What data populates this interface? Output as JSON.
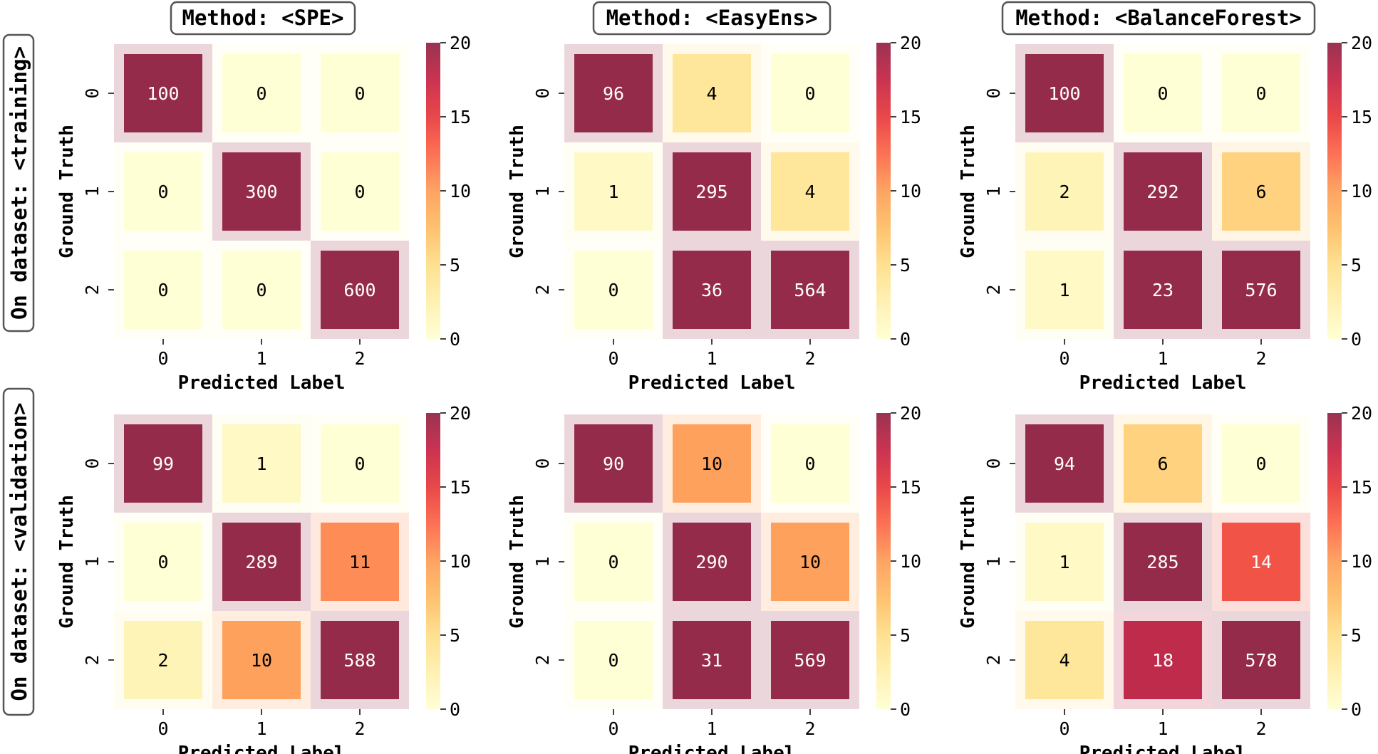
{
  "figure": {
    "row_labels": [
      "On dataset: <training>",
      "On dataset: <validation>"
    ],
    "col_titles": [
      "Method: <SPE>",
      "Method: <EasyEns>",
      "Method: <BalanceForest>"
    ]
  },
  "colors": {
    "cmap": [
      "#ffffcc",
      "#ffeda0",
      "#fed976",
      "#feb24c",
      "#fd8d3c",
      "#fc4e2a",
      "#e31a1c",
      "#bd0026",
      "#800026"
    ],
    "cell_alpha": 0.8,
    "title_box_stroke": "#555555",
    "text_dark": "#000000",
    "text_light": "#ffffff"
  },
  "chart_data": [
    {
      "type": "heatmap",
      "title": "Method: <SPE>",
      "row_group": "On dataset: <training>",
      "xlabel": "Predicted Label",
      "ylabel": "Ground Truth",
      "x_ticks": [
        "0",
        "1",
        "2"
      ],
      "y_ticks": [
        "0",
        "1",
        "2"
      ],
      "values": [
        [
          100,
          0,
          0
        ],
        [
          0,
          300,
          0
        ],
        [
          0,
          0,
          600
        ]
      ],
      "colorbar": {
        "range": [
          0,
          20
        ],
        "ticks": [
          "0",
          "5",
          "10",
          "15",
          "20"
        ]
      }
    },
    {
      "type": "heatmap",
      "title": "Method: <EasyEns>",
      "row_group": "On dataset: <training>",
      "xlabel": "Predicted Label",
      "ylabel": "Ground Truth",
      "x_ticks": [
        "0",
        "1",
        "2"
      ],
      "y_ticks": [
        "0",
        "1",
        "2"
      ],
      "values": [
        [
          96,
          4,
          0
        ],
        [
          1,
          295,
          4
        ],
        [
          0,
          36,
          564
        ]
      ],
      "colorbar": {
        "range": [
          0,
          20
        ],
        "ticks": [
          "0",
          "5",
          "10",
          "15",
          "20"
        ]
      }
    },
    {
      "type": "heatmap",
      "title": "Method: <BalanceForest>",
      "row_group": "On dataset: <training>",
      "xlabel": "Predicted Label",
      "ylabel": "Ground Truth",
      "x_ticks": [
        "0",
        "1",
        "2"
      ],
      "y_ticks": [
        "0",
        "1",
        "2"
      ],
      "values": [
        [
          100,
          0,
          0
        ],
        [
          2,
          292,
          6
        ],
        [
          1,
          23,
          576
        ]
      ],
      "colorbar": {
        "range": [
          0,
          20
        ],
        "ticks": [
          "0",
          "5",
          "10",
          "15",
          "20"
        ]
      }
    },
    {
      "type": "heatmap",
      "title": "",
      "row_group": "On dataset: <validation>",
      "xlabel": "Predicted Label",
      "ylabel": "Ground Truth",
      "x_ticks": [
        "0",
        "1",
        "2"
      ],
      "y_ticks": [
        "0",
        "1",
        "2"
      ],
      "values": [
        [
          99,
          1,
          0
        ],
        [
          0,
          289,
          11
        ],
        [
          2,
          10,
          588
        ]
      ],
      "colorbar": {
        "range": [
          0,
          20
        ],
        "ticks": [
          "0",
          "5",
          "10",
          "15",
          "20"
        ]
      }
    },
    {
      "type": "heatmap",
      "title": "",
      "row_group": "On dataset: <validation>",
      "xlabel": "Predicted Label",
      "ylabel": "Ground Truth",
      "x_ticks": [
        "0",
        "1",
        "2"
      ],
      "y_ticks": [
        "0",
        "1",
        "2"
      ],
      "values": [
        [
          90,
          10,
          0
        ],
        [
          0,
          290,
          10
        ],
        [
          0,
          31,
          569
        ]
      ],
      "colorbar": {
        "range": [
          0,
          20
        ],
        "ticks": [
          "0",
          "5",
          "10",
          "15",
          "20"
        ]
      }
    },
    {
      "type": "heatmap",
      "title": "",
      "row_group": "On dataset: <validation>",
      "xlabel": "Predicted Label",
      "ylabel": "Ground Truth",
      "x_ticks": [
        "0",
        "1",
        "2"
      ],
      "y_ticks": [
        "0",
        "1",
        "2"
      ],
      "values": [
        [
          94,
          6,
          0
        ],
        [
          1,
          285,
          14
        ],
        [
          4,
          18,
          578
        ]
      ],
      "colorbar": {
        "range": [
          0,
          20
        ],
        "ticks": [
          "0",
          "5",
          "10",
          "15",
          "20"
        ]
      }
    }
  ]
}
